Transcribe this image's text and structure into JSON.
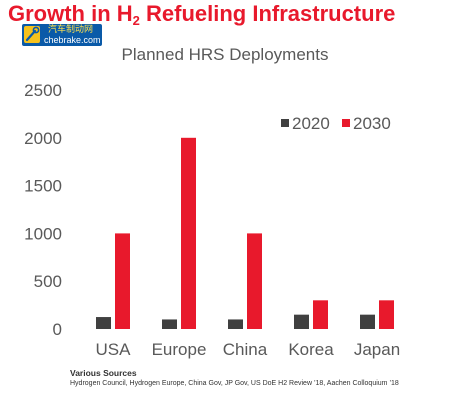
{
  "slide": {
    "title_pre": "Growth in H",
    "title_sub": "2",
    "title_post": " Refueling Infrastructure",
    "title_color": "#e8192c"
  },
  "logo": {
    "text_cn": "汽车制动网",
    "url": "chebrake.com",
    "bg_color": "#0a5aa8",
    "mark_color": "#f6c21d"
  },
  "chart_data": {
    "type": "bar",
    "title": "Planned HRS Deployments",
    "categories": [
      "USA",
      "Europe",
      "China",
      "Korea",
      "Japan"
    ],
    "series": [
      {
        "name": "2020",
        "color": "#404040",
        "values": [
          125,
          100,
          100,
          150,
          150
        ]
      },
      {
        "name": "2030",
        "color": "#e8192c",
        "values": [
          1000,
          2000,
          1000,
          300,
          300
        ]
      }
    ],
    "ylim": [
      0,
      2500
    ],
    "yticks": [
      "0",
      "500",
      "1000",
      "1500",
      "2000",
      "2500"
    ],
    "grid": false,
    "legend_position": "top-right"
  },
  "footer": {
    "title": "Various Sources",
    "text": "Hydrogen Council, Hydrogen Europe, China Gov, JP Gov, US DoE H2 Review ’18, Aachen Colloquium ’18"
  }
}
